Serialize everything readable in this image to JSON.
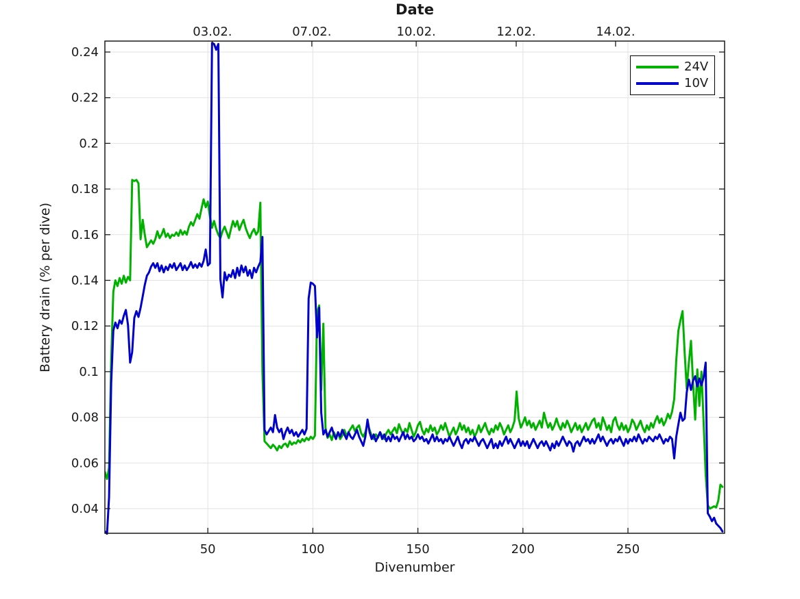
{
  "figure": {
    "background": "#ffffff",
    "axis_color": "#1a1a1a",
    "grid_color": "#e2e2e2"
  },
  "chart_data": {
    "type": "line",
    "title_top_axis": "Date",
    "xlabel": "Divenumber",
    "ylabel": "Battery drain (% per dive)",
    "xlim": [
      1,
      296
    ],
    "ylim": [
      0.0292,
      0.2448
    ],
    "grid": "on",
    "x_ticks_bottom": {
      "values": [
        50,
        100,
        150,
        200,
        250
      ],
      "labels": [
        "50",
        "100",
        "150",
        "200",
        "250"
      ]
    },
    "x_ticks_top": {
      "values": [
        52.2,
        99.5,
        149.2,
        196.8,
        244.1
      ],
      "labels": [
        "03.02.",
        "07.02.",
        "10.02.",
        "12.02.",
        "14.02."
      ]
    },
    "y_ticks": {
      "values": [
        0.24,
        0.22,
        0.2,
        0.18,
        0.16,
        0.14,
        0.12,
        0.1,
        0.08,
        0.06,
        0.04
      ],
      "labels": [
        "0.24",
        "0.22",
        "0.2",
        "0.18",
        "0.16",
        "0.14",
        "0.12",
        "0.1",
        "0.08",
        "0.06",
        "0.04"
      ]
    },
    "legend": {
      "position": "top-right",
      "entries": [
        {
          "label": "24V",
          "color": "#00b100"
        },
        {
          "label": "10V",
          "color": "#0000cc"
        }
      ]
    },
    "x_start_dive": 1,
    "series": [
      {
        "name": "24V",
        "color": "#00b100",
        "linewidth": 3,
        "values": [
          0.056,
          0.053,
          0.058,
          0.105,
          0.135,
          0.14,
          0.1375,
          0.141,
          0.1385,
          0.142,
          0.139,
          0.1415,
          0.14,
          0.184,
          0.1835,
          0.184,
          0.1825,
          0.158,
          0.1665,
          0.16,
          0.1545,
          0.156,
          0.1575,
          0.156,
          0.158,
          0.1615,
          0.1585,
          0.16,
          0.1625,
          0.159,
          0.1605,
          0.1585,
          0.16,
          0.1595,
          0.161,
          0.1595,
          0.162,
          0.16,
          0.1615,
          0.16,
          0.1635,
          0.1655,
          0.164,
          0.1665,
          0.169,
          0.167,
          0.1715,
          0.1755,
          0.172,
          0.1745,
          0.168,
          0.163,
          0.166,
          0.1625,
          0.16,
          0.1585,
          0.1615,
          0.1635,
          0.161,
          0.1585,
          0.1625,
          0.166,
          0.1635,
          0.166,
          0.162,
          0.1645,
          0.1665,
          0.163,
          0.1605,
          0.1585,
          0.161,
          0.1625,
          0.16,
          0.1615,
          0.174,
          0.1,
          0.0695,
          0.0685,
          0.0675,
          0.0665,
          0.068,
          0.067,
          0.0655,
          0.0675,
          0.0665,
          0.068,
          0.0685,
          0.067,
          0.0695,
          0.068,
          0.069,
          0.0685,
          0.07,
          0.069,
          0.0705,
          0.0695,
          0.071,
          0.07,
          0.0715,
          0.0705,
          0.072,
          0.126,
          0.129,
          0.092,
          0.121,
          0.0755,
          0.071,
          0.0725,
          0.07,
          0.0735,
          0.0715,
          0.073,
          0.0705,
          0.072,
          0.0745,
          0.072,
          0.0735,
          0.075,
          0.0765,
          0.074,
          0.0755,
          0.0765,
          0.073,
          0.0715,
          0.0735,
          0.0775,
          0.0745,
          0.072,
          0.0705,
          0.0725,
          0.071,
          0.0735,
          0.072,
          0.0705,
          0.073,
          0.0745,
          0.0725,
          0.074,
          0.0755,
          0.073,
          0.077,
          0.0745,
          0.0725,
          0.075,
          0.0735,
          0.0775,
          0.0745,
          0.0715,
          0.0735,
          0.0765,
          0.078,
          0.0745,
          0.0725,
          0.075,
          0.0735,
          0.0765,
          0.074,
          0.0755,
          0.0725,
          0.074,
          0.0765,
          0.0745,
          0.0775,
          0.0745,
          0.0715,
          0.0735,
          0.0755,
          0.0725,
          0.0745,
          0.0775,
          0.0745,
          0.0765,
          0.0735,
          0.0755,
          0.0725,
          0.0745,
          0.0715,
          0.0735,
          0.0765,
          0.0735,
          0.0755,
          0.0775,
          0.0745,
          0.0725,
          0.075,
          0.0735,
          0.0765,
          0.0745,
          0.0775,
          0.0755,
          0.0725,
          0.0745,
          0.0765,
          0.0735,
          0.0755,
          0.0785,
          0.0913,
          0.0795,
          0.0755,
          0.0775,
          0.08,
          0.0765,
          0.0785,
          0.0755,
          0.0775,
          0.0745,
          0.0765,
          0.0785,
          0.0755,
          0.082,
          0.0785,
          0.0755,
          0.0775,
          0.0745,
          0.0765,
          0.0795,
          0.0765,
          0.0745,
          0.0775,
          0.0755,
          0.0785,
          0.0765,
          0.0735,
          0.0755,
          0.0775,
          0.0745,
          0.0765,
          0.0735,
          0.0755,
          0.0775,
          0.0745,
          0.0765,
          0.0785,
          0.0795,
          0.0755,
          0.0775,
          0.0745,
          0.08,
          0.0775,
          0.0745,
          0.0765,
          0.0735,
          0.0785,
          0.08,
          0.0765,
          0.0745,
          0.0775,
          0.0745,
          0.0765,
          0.0735,
          0.0755,
          0.079,
          0.0775,
          0.0745,
          0.0765,
          0.0785,
          0.0755,
          0.0735,
          0.0765,
          0.0745,
          0.0775,
          0.0755,
          0.0785,
          0.0805,
          0.0775,
          0.0795,
          0.0765,
          0.0785,
          0.0815,
          0.0795,
          0.0825,
          0.088,
          0.105,
          0.118,
          0.1225,
          0.1265,
          0.108,
          0.0925,
          0.104,
          0.1135,
          0.095,
          0.079,
          0.101,
          0.085,
          0.1,
          0.078,
          0.055,
          0.0415,
          0.04,
          0.0405,
          0.041,
          0.0405,
          0.0435,
          0.0505,
          0.0495
        ]
      },
      {
        "name": "10V",
        "color": "#0000cc",
        "linewidth": 3,
        "values": [
          0.03,
          0.029,
          0.045,
          0.095,
          0.118,
          0.1215,
          0.119,
          0.1225,
          0.121,
          0.1245,
          0.127,
          0.1205,
          0.104,
          0.1085,
          0.1235,
          0.1265,
          0.124,
          0.128,
          0.133,
          0.138,
          0.142,
          0.1435,
          0.146,
          0.1475,
          0.1455,
          0.1475,
          0.144,
          0.1465,
          0.1435,
          0.146,
          0.1445,
          0.147,
          0.1455,
          0.1475,
          0.1445,
          0.146,
          0.1475,
          0.1445,
          0.1465,
          0.1445,
          0.146,
          0.148,
          0.1455,
          0.147,
          0.1455,
          0.1475,
          0.146,
          0.1485,
          0.1535,
          0.1465,
          0.1475,
          0.244,
          0.2435,
          0.241,
          0.2435,
          0.1405,
          0.1325,
          0.1435,
          0.14,
          0.1425,
          0.1415,
          0.1445,
          0.141,
          0.1455,
          0.142,
          0.1465,
          0.1435,
          0.146,
          0.142,
          0.1445,
          0.141,
          0.1455,
          0.1435,
          0.146,
          0.148,
          0.159,
          0.0745,
          0.0725,
          0.074,
          0.0755,
          0.0735,
          0.081,
          0.0755,
          0.0735,
          0.075,
          0.0705,
          0.0735,
          0.0755,
          0.073,
          0.0745,
          0.072,
          0.0735,
          0.0715,
          0.073,
          0.0745,
          0.0725,
          0.075,
          0.132,
          0.139,
          0.1385,
          0.1375,
          0.115,
          0.128,
          0.082,
          0.0725,
          0.0745,
          0.0715,
          0.0735,
          0.0755,
          0.0725,
          0.0705,
          0.0735,
          0.0715,
          0.0745,
          0.0725,
          0.0705,
          0.0735,
          0.0715,
          0.0705,
          0.0725,
          0.0745,
          0.0715,
          0.0695,
          0.0675,
          0.0715,
          0.079,
          0.0735,
          0.0705,
          0.0725,
          0.0695,
          0.0715,
          0.0735,
          0.0705,
          0.0725,
          0.0695,
          0.0715,
          0.0695,
          0.0725,
          0.0705,
          0.0715,
          0.0695,
          0.0715,
          0.0735,
          0.0705,
          0.0725,
          0.0705,
          0.0715,
          0.0695,
          0.0705,
          0.0725,
          0.0705,
          0.0715,
          0.0695,
          0.0705,
          0.0685,
          0.0705,
          0.0725,
          0.0695,
          0.0715,
          0.0695,
          0.0705,
          0.0685,
          0.0705,
          0.0695,
          0.0715,
          0.0695,
          0.0675,
          0.0695,
          0.0715,
          0.0685,
          0.0665,
          0.0695,
          0.0705,
          0.0685,
          0.0705,
          0.0695,
          0.0715,
          0.0695,
          0.0675,
          0.0695,
          0.0705,
          0.0685,
          0.0665,
          0.0685,
          0.0705,
          0.0665,
          0.0685,
          0.0665,
          0.0695,
          0.0675,
          0.0695,
          0.0715,
          0.0685,
          0.0705,
          0.0685,
          0.0665,
          0.0685,
          0.0705,
          0.0675,
          0.0695,
          0.0675,
          0.0695,
          0.0665,
          0.0685,
          0.0705,
          0.0685,
          0.0665,
          0.0685,
          0.0695,
          0.0675,
          0.0695,
          0.0675,
          0.0655,
          0.0685,
          0.0665,
          0.0695,
          0.0675,
          0.0695,
          0.0715,
          0.0695,
          0.0675,
          0.0695,
          0.0685,
          0.065,
          0.0685,
          0.0695,
          0.0675,
          0.0695,
          0.0715,
          0.0695,
          0.0705,
          0.0685,
          0.0705,
          0.0685,
          0.0705,
          0.0725,
          0.0695,
          0.0715,
          0.0695,
          0.0675,
          0.0695,
          0.0705,
          0.0685,
          0.0705,
          0.0695,
          0.0715,
          0.0695,
          0.0675,
          0.0705,
          0.0685,
          0.0705,
          0.0695,
          0.0715,
          0.0695,
          0.0725,
          0.0705,
          0.0685,
          0.0705,
          0.0695,
          0.0715,
          0.0705,
          0.0695,
          0.0715,
          0.0705,
          0.0725,
          0.0705,
          0.0685,
          0.0705,
          0.0695,
          0.0715,
          0.0705,
          0.062,
          0.0715,
          0.077,
          0.082,
          0.0785,
          0.0795,
          0.091,
          0.0965,
          0.092,
          0.096,
          0.098,
          0.0935,
          0.097,
          0.094,
          0.0975,
          0.104,
          0.038,
          0.0365,
          0.0345,
          0.036,
          0.0335,
          0.0325,
          0.0315,
          0.03
        ]
      }
    ]
  }
}
